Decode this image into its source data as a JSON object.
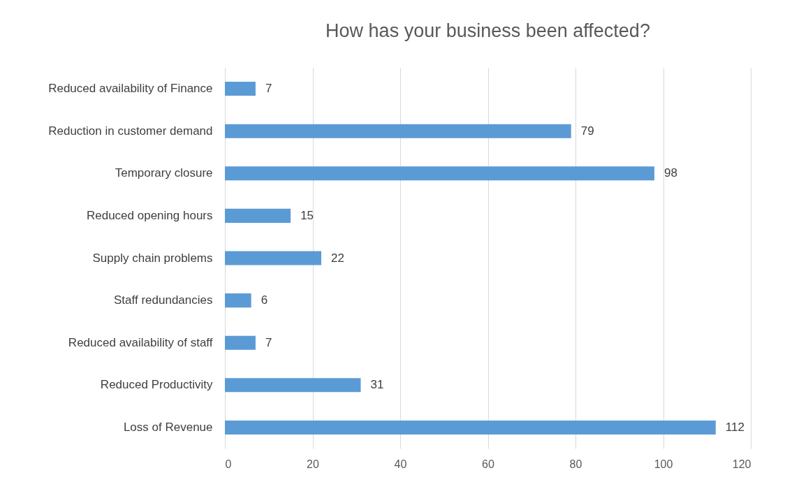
{
  "chart_data": {
    "type": "bar",
    "orientation": "horizontal",
    "title": "How has your business been affected?",
    "categories": [
      "Reduced availability of Finance",
      "Reduction in customer demand",
      "Temporary closure",
      "Reduced opening hours",
      "Supply chain problems",
      "Staff redundancies",
      "Reduced availability of staff",
      "Reduced Productivity",
      "Loss of Revenue"
    ],
    "values": [
      7,
      79,
      98,
      15,
      22,
      6,
      7,
      31,
      112
    ],
    "color": "#5b9bd5",
    "xlim": [
      0,
      120
    ],
    "xticks": [
      0,
      20,
      40,
      60,
      80,
      100,
      120
    ],
    "grid": "x",
    "data_labels": true
  }
}
